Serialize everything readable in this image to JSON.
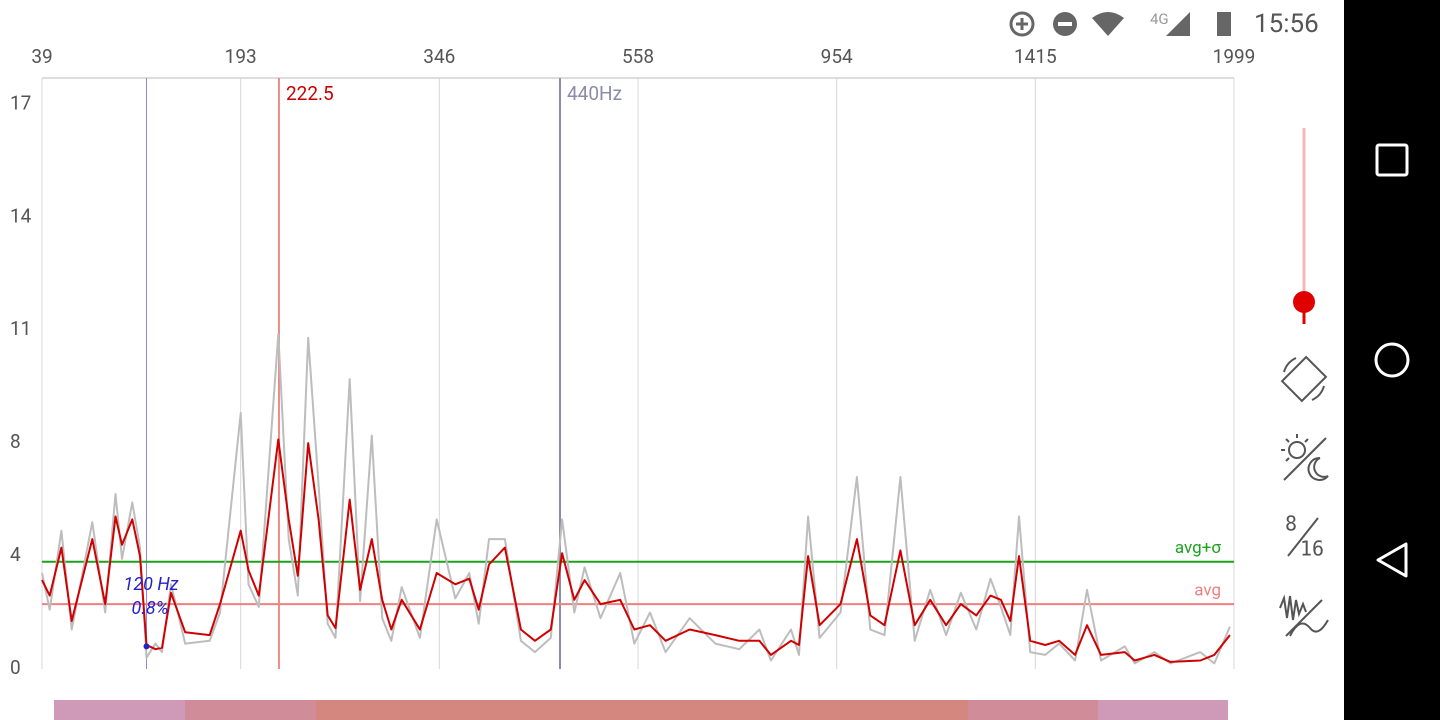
{
  "status_bar": {
    "network": "4G",
    "time": "15:56"
  },
  "chart_data": {
    "type": "line",
    "x": [
      39,
      45,
      54,
      62,
      78,
      88,
      96,
      101,
      109,
      115,
      120,
      127,
      132,
      139,
      150,
      169,
      177,
      193,
      199,
      207,
      222,
      230,
      237,
      245,
      253,
      260,
      266,
      277,
      285,
      294,
      302,
      309,
      317,
      331,
      344,
      363,
      378,
      388,
      399,
      416,
      433,
      448,
      465,
      477,
      490,
      501,
      518,
      539,
      554,
      582,
      613,
      661,
      712,
      760,
      800,
      823,
      863,
      879,
      897,
      920,
      963,
      1001,
      1032,
      1065,
      1102,
      1135,
      1171,
      1208,
      1242,
      1278,
      1311,
      1335,
      1357,
      1377,
      1403,
      1444,
      1485,
      1532,
      1567,
      1608,
      1678,
      1707,
      1765,
      1812,
      1900,
      1941,
      1987
    ],
    "series": [
      {
        "color": "#bdbdbd",
        "values": [
          3.4,
          2.1,
          4.9,
          1.4,
          5.2,
          2.0,
          6.2,
          3.9,
          5.9,
          4.3,
          0.4,
          0.9,
          0.6,
          3.0,
          0.9,
          1.0,
          2.0,
          8.8,
          3.0,
          2.2,
          10.9,
          4.6,
          2.6,
          10.8,
          6.5,
          1.6,
          1.1,
          9.7,
          2.4,
          8.2,
          1.8,
          1.0,
          2.9,
          1.1,
          5.3,
          2.5,
          3.4,
          1.6,
          4.6,
          4.6,
          1.0,
          0.6,
          1.1,
          5.3,
          2.0,
          3.6,
          1.8,
          3.4,
          0.9,
          2.0,
          0.6,
          1.8,
          0.9,
          0.7,
          1.4,
          0.3,
          1.4,
          0.5,
          5.4,
          1.1,
          2.0,
          6.8,
          1.4,
          1.2,
          6.8,
          1.0,
          2.8,
          1.2,
          2.7,
          1.4,
          3.2,
          2.2,
          1.2,
          5.4,
          0.6,
          0.5,
          0.9,
          0.3,
          2.8,
          0.3,
          0.8,
          0.2,
          0.6,
          0.2,
          0.6,
          0.2,
          1.5
        ]
      },
      {
        "color": "#d00000",
        "values": [
          3.15,
          2.6,
          4.3,
          1.7,
          4.6,
          2.3,
          5.4,
          4.4,
          5.3,
          4.0,
          0.85,
          0.7,
          0.75,
          2.7,
          1.3,
          1.2,
          2.3,
          4.9,
          3.5,
          2.6,
          8.1,
          5.3,
          3.3,
          8.0,
          5.3,
          1.9,
          1.45,
          6.0,
          2.8,
          4.6,
          2.45,
          1.4,
          2.45,
          1.4,
          3.4,
          3.0,
          3.2,
          2.1,
          3.7,
          4.3,
          1.4,
          1.0,
          1.4,
          4.1,
          2.45,
          3.15,
          2.3,
          2.45,
          1.4,
          1.55,
          1.0,
          1.4,
          1.2,
          1.0,
          1.0,
          0.5,
          1.0,
          0.85,
          4.0,
          1.55,
          2.3,
          4.6,
          1.9,
          1.55,
          4.2,
          1.55,
          2.45,
          1.55,
          2.3,
          1.9,
          2.6,
          2.45,
          1.7,
          4.0,
          1.0,
          0.85,
          1.0,
          0.5,
          1.55,
          0.5,
          0.6,
          0.3,
          0.5,
          0.25,
          0.3,
          0.5,
          1.2
        ]
      }
    ],
    "xlim": [
      39,
      1999
    ],
    "xticks": [
      39,
      193,
      346,
      558,
      954,
      1415,
      1999
    ],
    "ylim": [
      0,
      17.7
    ],
    "yticks": [
      0,
      4,
      8,
      11,
      14,
      17
    ],
    "grid": true,
    "cursor": 222.5,
    "reference_label": "440Hz",
    "peak": {
      "x": 120,
      "x_label": "120 Hz",
      "value": 0.8,
      "value_label": "0.8%"
    },
    "hlines": [
      {
        "label": "avg+σ",
        "value": 3.8,
        "color": "#1aa31a"
      },
      {
        "label": "avg",
        "value": 2.3,
        "color": "#f08080"
      }
    ]
  },
  "sidebar": {
    "fft_top": "8",
    "fft_bottom": "16"
  }
}
